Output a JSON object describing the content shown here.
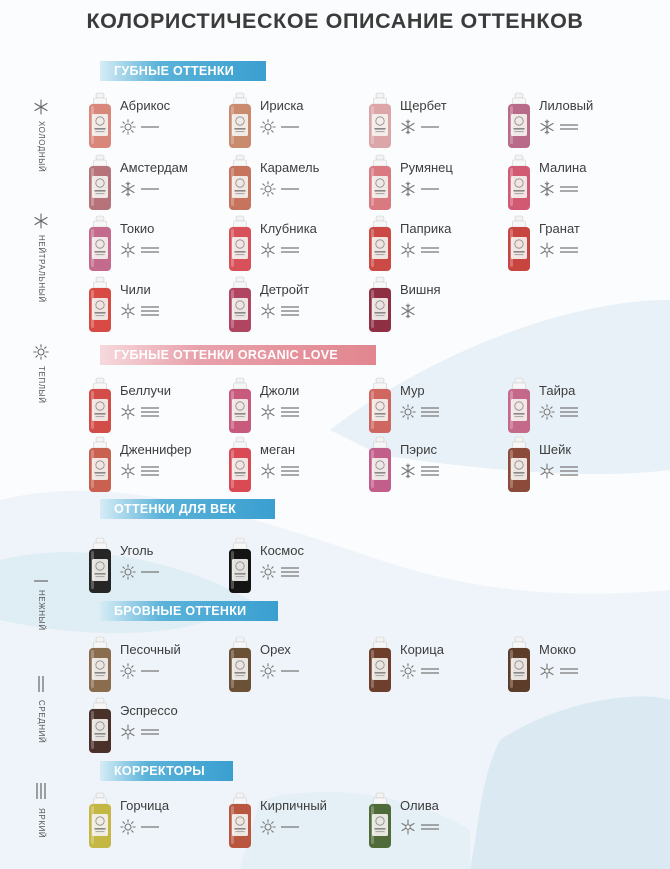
{
  "title": "КОЛОРИСТИЧЕСКОЕ ОПИСАНИЕ ОТТЕНКОВ",
  "legend": {
    "cold": "ХОЛОДНЫЙ",
    "neutral": "НЕЙТРАЛЬНЫЙ",
    "warm": "ТЕПЛЫЙ",
    "soft": "НЕЖНЫЙ",
    "medium": "СРЕДНИЙ",
    "bright": "ЯРКИЙ"
  },
  "sections": [
    {
      "title": "ГУБНЫЕ ОТТЕНКИ",
      "products": [
        {
          "name": "Абрикос",
          "color": "#d9877a",
          "tone": "warm",
          "intensity": "soft"
        },
        {
          "name": "Ириска",
          "color": "#c98a6e",
          "tone": "warm",
          "intensity": "soft"
        },
        {
          "name": "Щербет",
          "color": "#dca6a9",
          "tone": "cold",
          "intensity": "soft"
        },
        {
          "name": "Лиловый",
          "color": "#b86a88",
          "tone": "cold",
          "intensity": "medium"
        },
        {
          "name": "Амстердам",
          "color": "#b7737a",
          "tone": "cold",
          "intensity": "soft"
        },
        {
          "name": "Карамель",
          "color": "#c6745e",
          "tone": "warm",
          "intensity": "soft"
        },
        {
          "name": "Румянец",
          "color": "#d97a80",
          "tone": "cold",
          "intensity": "soft"
        },
        {
          "name": "Малина",
          "color": "#d15a72",
          "tone": "cold",
          "intensity": "medium"
        },
        {
          "name": "Токио",
          "color": "#c46a8c",
          "tone": "neutral",
          "intensity": "medium"
        },
        {
          "name": "Клубника",
          "color": "#d7505a",
          "tone": "neutral",
          "intensity": "medium"
        },
        {
          "name": "Паприка",
          "color": "#cc4a45",
          "tone": "neutral",
          "intensity": "medium"
        },
        {
          "name": "Гранат",
          "color": "#c8443e",
          "tone": "neutral",
          "intensity": "medium"
        },
        {
          "name": "Чили",
          "color": "#d84b44",
          "tone": "neutral",
          "intensity": "bright"
        },
        {
          "name": "Детройт",
          "color": "#b04562",
          "tone": "neutral",
          "intensity": "bright"
        },
        {
          "name": "Вишня",
          "color": "#8e2f44",
          "tone": "cold",
          "intensity": ""
        }
      ]
    },
    {
      "title": "ГУБНЫЕ ОТТЕНКИ ORGANIC LOVE",
      "products": [
        {
          "name": "Беллучи",
          "color": "#d24c48",
          "tone": "neutral",
          "intensity": "bright"
        },
        {
          "name": "Джоли",
          "color": "#c85a7e",
          "tone": "neutral",
          "intensity": "bright"
        },
        {
          "name": "Мур",
          "color": "#d06660",
          "tone": "warm",
          "intensity": "bright"
        },
        {
          "name": "Тайра",
          "color": "#c5698a",
          "tone": "warm",
          "intensity": "bright"
        },
        {
          "name": "Дженнифер",
          "color": "#c96150",
          "tone": "neutral",
          "intensity": "bright"
        },
        {
          "name": "меган",
          "color": "#d94a55",
          "tone": "neutral",
          "intensity": "bright"
        },
        {
          "name": "Пэрис",
          "color": "#c25e8a",
          "tone": "cold",
          "intensity": "bright"
        },
        {
          "name": "Шейк",
          "color": "#8b4a3a",
          "tone": "neutral",
          "intensity": "bright"
        }
      ]
    },
    {
      "title": "ОТТЕНКИ ДЛЯ ВЕК",
      "products": [
        {
          "name": "Уголь",
          "color": "#262626",
          "tone": "warm",
          "intensity": "soft"
        },
        {
          "name": "Космос",
          "color": "#141414",
          "tone": "warm",
          "intensity": "bright"
        }
      ]
    },
    {
      "title": "БРОВНЫЕ ОТТЕНКИ",
      "products": [
        {
          "name": "Песочный",
          "color": "#8a6d4e",
          "tone": "warm",
          "intensity": "soft"
        },
        {
          "name": "Орех",
          "color": "#6b5236",
          "tone": "warm",
          "intensity": "soft"
        },
        {
          "name": "Корица",
          "color": "#6e3f2c",
          "tone": "warm",
          "intensity": "medium"
        },
        {
          "name": "Мокко",
          "color": "#5d3c2a",
          "tone": "neutral",
          "intensity": "medium"
        },
        {
          "name": "Эспрессо",
          "color": "#4a3129",
          "tone": "neutral",
          "intensity": "medium"
        }
      ]
    },
    {
      "title": "КОРРЕКТОРЫ",
      "products": [
        {
          "name": "Горчица",
          "color": "#c4b744",
          "tone": "warm",
          "intensity": "soft"
        },
        {
          "name": "Кирпичный",
          "color": "#b9563f",
          "tone": "warm",
          "intensity": "soft"
        },
        {
          "name": "Олива",
          "color": "#4f6b3a",
          "tone": "neutral",
          "intensity": "medium"
        }
      ]
    }
  ]
}
